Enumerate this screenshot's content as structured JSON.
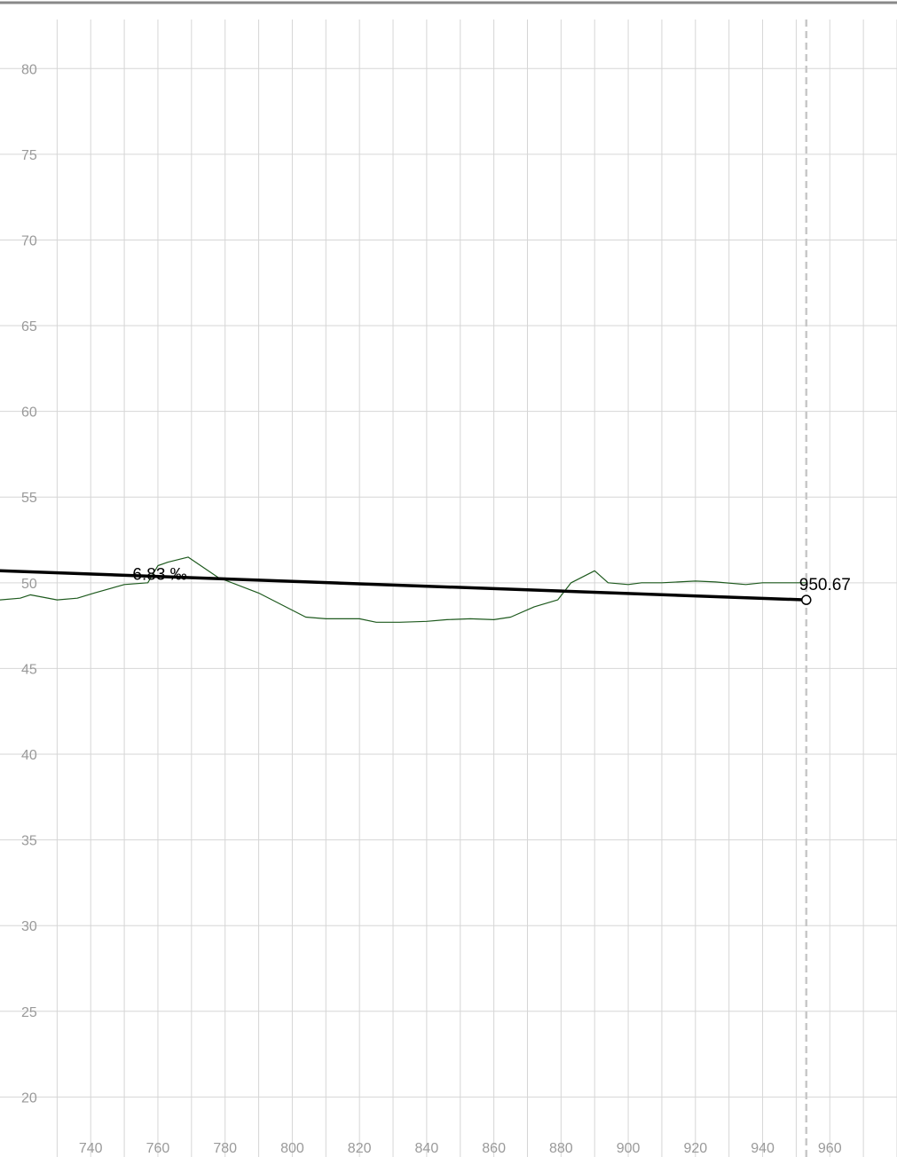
{
  "chart_data": {
    "type": "line",
    "title": "",
    "xlabel": "",
    "ylabel": "",
    "xlim": [
      713,
      980
    ],
    "ylim": [
      16.5,
      84
    ],
    "x_ticks": [
      740,
      760,
      780,
      800,
      820,
      840,
      860,
      880,
      900,
      920,
      940,
      960
    ],
    "y_ticks": [
      20,
      25,
      30,
      35,
      40,
      45,
      50,
      55,
      60,
      65,
      70,
      75,
      80
    ],
    "grid": true,
    "legend": "none",
    "series": [
      {
        "color": "#1e5a1e",
        "x": [
          713,
          719,
          722,
          730,
          736,
          741,
          750,
          757,
          760,
          763,
          769,
          778,
          790,
          804,
          810,
          820,
          825,
          832,
          840,
          846,
          853,
          860,
          865,
          872,
          879,
          883,
          890,
          894,
          900,
          904,
          910,
          920,
          926,
          935,
          940,
          945,
          953
        ],
        "y": [
          49.0,
          49.1,
          49.3,
          49.0,
          49.1,
          49.4,
          49.9,
          50.0,
          51.0,
          51.2,
          51.5,
          50.3,
          49.4,
          48.0,
          47.9,
          47.9,
          47.7,
          47.7,
          47.75,
          47.85,
          47.9,
          47.85,
          48.0,
          48.6,
          49.0,
          50.0,
          50.7,
          50.0,
          49.9,
          50.0,
          50.0,
          50.1,
          50.05,
          49.9,
          50.0,
          50.0,
          50.0
        ]
      }
    ],
    "trend_line": {
      "color": "#000000",
      "start": [
        713,
        50.7
      ],
      "end": [
        953,
        49.0
      ],
      "label": "-6.83 ‰",
      "label_at": [
        750,
        51.2
      ]
    },
    "endpoint": {
      "x": 953,
      "y": 49.0,
      "label": "950.67"
    },
    "reference_line": {
      "x": 953,
      "color": "#c8c8c8"
    }
  }
}
